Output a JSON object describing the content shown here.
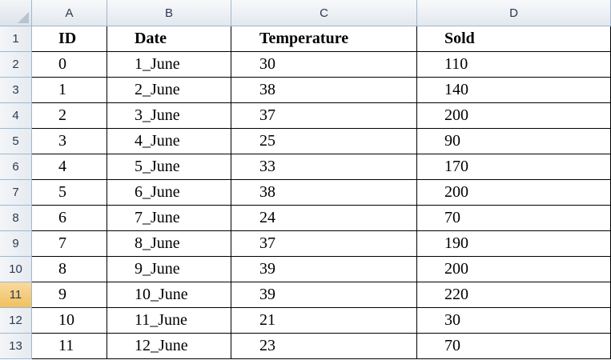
{
  "column_headers": [
    "A",
    "B",
    "C",
    "D"
  ],
  "row_numbers": [
    "1",
    "2",
    "3",
    "4",
    "5",
    "6",
    "7",
    "8",
    "9",
    "10",
    "11",
    "12",
    "13"
  ],
  "active_row": "11",
  "table": {
    "headers": [
      "ID",
      "Date",
      "Temperature",
      "Sold"
    ],
    "rows": [
      [
        "0",
        "1_June",
        "30",
        "110"
      ],
      [
        "1",
        "2_June",
        "38",
        "140"
      ],
      [
        "2",
        "3_June",
        "37",
        "200"
      ],
      [
        "3",
        "4_June",
        "25",
        "90"
      ],
      [
        "4",
        "5_June",
        "33",
        "170"
      ],
      [
        "5",
        "6_June",
        "38",
        "200"
      ],
      [
        "6",
        "7_June",
        "24",
        "70"
      ],
      [
        "7",
        "8_June",
        "37",
        "190"
      ],
      [
        "8",
        "9_June",
        "39",
        "200"
      ],
      [
        "9",
        "10_June",
        "39",
        "220"
      ],
      [
        "10",
        "11_June",
        "21",
        "30"
      ],
      [
        "11",
        "12_June",
        "23",
        "70"
      ]
    ]
  },
  "colors": {
    "header_border": "#9eb6ce",
    "active_row_header": "#f6cf7f",
    "cell_border": "#000000"
  }
}
